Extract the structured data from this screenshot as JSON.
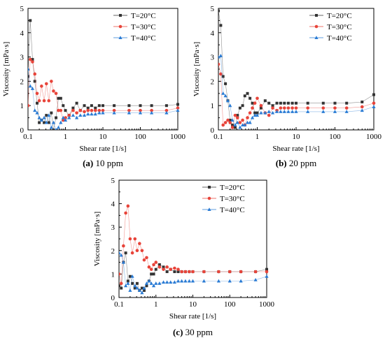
{
  "chart_data": [
    {
      "type": "scatter",
      "caption_letter": "(a)",
      "caption_text": "10 ppm",
      "xlabel": "Shear rate [1/s]",
      "ylabel": "Viscosity [mPa·s]",
      "x_scale": "log",
      "xlim": [
        0.1,
        1000
      ],
      "ylim": [
        0,
        5
      ],
      "x_ticks": [
        "0.1",
        "1",
        "10",
        "100",
        "1000"
      ],
      "y_ticks": [
        "0",
        "1",
        "2",
        "3",
        "4",
        "5"
      ],
      "legend_position": "top-right",
      "series": [
        {
          "name": "T=20°C",
          "color": "#333333",
          "marker": "square",
          "x": [
            0.1,
            0.115,
            0.132,
            0.152,
            0.175,
            0.2,
            0.23,
            0.27,
            0.31,
            0.36,
            0.42,
            0.48,
            0.56,
            0.65,
            0.75,
            0.87,
            1.0,
            1.25,
            1.6,
            2,
            2.5,
            3.2,
            4,
            5,
            6.3,
            8,
            10,
            20,
            50,
            100,
            200,
            500,
            1000
          ],
          "y": [
            2.2,
            4.5,
            2.9,
            2.0,
            1.1,
            0.3,
            0.4,
            0.3,
            0.6,
            0.3,
            0.7,
            0.0,
            0.5,
            1.3,
            1.3,
            1.0,
            0.8,
            0.6,
            0.9,
            1.1,
            0.8,
            1.0,
            0.9,
            1.0,
            0.9,
            1.0,
            1.0,
            1.0,
            1.0,
            1.0,
            1.0,
            1.0,
            1.05
          ]
        },
        {
          "name": "T=30°C",
          "color": "#e8443a",
          "marker": "circle",
          "x": [
            0.1,
            0.115,
            0.132,
            0.152,
            0.175,
            0.2,
            0.23,
            0.27,
            0.31,
            0.36,
            0.42,
            0.48,
            0.56,
            0.65,
            0.75,
            0.87,
            1.0,
            1.25,
            1.6,
            2,
            2.5,
            3.2,
            4,
            5,
            6.3,
            8,
            10,
            20,
            50,
            100,
            200,
            500,
            1000
          ],
          "y": [
            1.0,
            2.9,
            2.8,
            2.3,
            1.5,
            1.2,
            1.8,
            1.2,
            1.9,
            1.2,
            2.0,
            1.6,
            1.5,
            0.8,
            0.8,
            0.4,
            0.5,
            0.6,
            0.8,
            0.7,
            0.8,
            0.75,
            0.8,
            0.8,
            0.8,
            0.8,
            0.8,
            0.8,
            0.8,
            0.8,
            0.8,
            0.8,
            0.9
          ]
        },
        {
          "name": "T=40°C",
          "color": "#2a7bd4",
          "marker": "triangle",
          "x": [
            0.1,
            0.115,
            0.132,
            0.152,
            0.175,
            0.2,
            0.23,
            0.27,
            0.31,
            0.36,
            0.42,
            0.48,
            0.56,
            0.65,
            0.75,
            0.87,
            1.0,
            1.25,
            1.6,
            2,
            2.5,
            3.2,
            4,
            5,
            6.3,
            8,
            10,
            20,
            50,
            100,
            200,
            500,
            1000
          ],
          "y": [
            2.5,
            1.8,
            1.7,
            0.8,
            0.7,
            0.5,
            0.4,
            0.5,
            0.3,
            0.6,
            0.1,
            0.3,
            0.0,
            0.1,
            0.3,
            0.5,
            0.4,
            0.5,
            0.6,
            0.5,
            0.6,
            0.6,
            0.65,
            0.65,
            0.65,
            0.7,
            0.7,
            0.7,
            0.7,
            0.7,
            0.7,
            0.7,
            0.8
          ]
        }
      ]
    },
    {
      "type": "scatter",
      "caption_letter": "(b)",
      "caption_text": "20 ppm",
      "xlabel": "Shear rate [1/s]",
      "ylabel": "Viscosity [mPa·s]",
      "x_scale": "log",
      "xlim": [
        0.1,
        1000
      ],
      "ylim": [
        0,
        5
      ],
      "x_ticks": [
        "0.1",
        "1",
        "10",
        "100",
        "1000"
      ],
      "y_ticks": [
        "0",
        "1",
        "2",
        "3",
        "4",
        "5"
      ],
      "legend_position": "top-right",
      "series": [
        {
          "name": "T=20°C",
          "color": "#333333",
          "marker": "square",
          "x": [
            0.1,
            0.115,
            0.132,
            0.152,
            0.175,
            0.2,
            0.23,
            0.27,
            0.31,
            0.36,
            0.42,
            0.48,
            0.56,
            0.65,
            0.75,
            0.87,
            1.0,
            1.25,
            1.6,
            2,
            2.5,
            3.2,
            4,
            5,
            6.3,
            8,
            10,
            20,
            50,
            100,
            200,
            500,
            1000
          ],
          "y": [
            4.9,
            4.3,
            2.2,
            1.9,
            1.2,
            0.4,
            0.2,
            0.1,
            0.6,
            0.9,
            1.0,
            1.4,
            1.5,
            1.3,
            1.1,
            0.7,
            0.7,
            0.9,
            1.2,
            1.1,
            1.0,
            1.1,
            1.1,
            1.1,
            1.1,
            1.1,
            1.1,
            1.1,
            1.1,
            1.1,
            1.1,
            1.15,
            1.45
          ]
        },
        {
          "name": "T=30°C",
          "color": "#e8443a",
          "marker": "circle",
          "x": [
            0.1,
            0.115,
            0.132,
            0.152,
            0.175,
            0.2,
            0.23,
            0.27,
            0.31,
            0.36,
            0.42,
            0.48,
            0.56,
            0.65,
            0.75,
            0.87,
            1.0,
            1.25,
            1.6,
            2,
            2.5,
            3.2,
            4,
            5,
            6.3,
            8,
            10,
            20,
            50,
            100,
            200,
            500,
            1000
          ],
          "y": [
            2.7,
            2.3,
            0.2,
            0.3,
            0.4,
            0.3,
            0.1,
            0.6,
            0.5,
            0.3,
            0.4,
            0.2,
            0.5,
            0.7,
            0.9,
            1.1,
            1.3,
            1.0,
            0.7,
            0.6,
            0.9,
            0.8,
            0.9,
            0.9,
            0.9,
            0.9,
            0.9,
            0.9,
            0.9,
            0.9,
            0.9,
            0.95,
            1.1
          ]
        },
        {
          "name": "T=40°C",
          "color": "#2a7bd4",
          "marker": "triangle",
          "x": [
            0.1,
            0.115,
            0.132,
            0.152,
            0.175,
            0.2,
            0.23,
            0.27,
            0.31,
            0.36,
            0.42,
            0.48,
            0.56,
            0.65,
            0.75,
            0.87,
            1.0,
            1.25,
            1.6,
            2,
            2.5,
            3.2,
            4,
            5,
            6.3,
            8,
            10,
            20,
            50,
            100,
            200,
            500,
            1000
          ],
          "y": [
            3.0,
            3.05,
            1.5,
            1.4,
            1.2,
            1.0,
            0.4,
            0.2,
            0.3,
            0.1,
            0.2,
            0.2,
            0.3,
            0.3,
            0.5,
            0.6,
            0.6,
            0.7,
            0.7,
            0.75,
            0.7,
            0.75,
            0.75,
            0.75,
            0.75,
            0.75,
            0.75,
            0.75,
            0.75,
            0.75,
            0.75,
            0.8,
            0.95
          ]
        }
      ]
    },
    {
      "type": "scatter",
      "caption_letter": "(c)",
      "caption_text": "30 ppm",
      "xlabel": "Shear rate [1/s]",
      "ylabel": "Viscosity [mPa·s]",
      "x_scale": "log",
      "xlim": [
        0.1,
        1000
      ],
      "ylim": [
        0,
        5
      ],
      "x_ticks": [
        "0.1",
        "1",
        "10",
        "100",
        "1000"
      ],
      "y_ticks": [
        "0",
        "1",
        "2",
        "3",
        "4",
        "5"
      ],
      "legend_position": "top-right",
      "series": [
        {
          "name": "T=20°C",
          "color": "#333333",
          "marker": "square",
          "x": [
            0.1,
            0.115,
            0.132,
            0.152,
            0.175,
            0.2,
            0.23,
            0.27,
            0.31,
            0.36,
            0.42,
            0.48,
            0.56,
            0.65,
            0.75,
            0.87,
            1.0,
            1.25,
            1.6,
            2,
            2.5,
            3.2,
            4,
            5,
            6.3,
            8,
            10,
            20,
            50,
            100,
            200,
            500,
            1000
          ],
          "y": [
            0.5,
            0.4,
            1.5,
            1.9,
            0.7,
            0.9,
            0.6,
            0.4,
            0.6,
            0.3,
            0.4,
            0.3,
            0.5,
            0.7,
            1.0,
            1.0,
            1.2,
            1.4,
            1.3,
            1.1,
            1.2,
            1.1,
            1.1,
            1.1,
            1.1,
            1.1,
            1.1,
            1.1,
            1.1,
            1.1,
            1.1,
            1.1,
            1.2
          ]
        },
        {
          "name": "T=30°C",
          "color": "#e8443a",
          "marker": "circle",
          "x": [
            0.1,
            0.115,
            0.132,
            0.152,
            0.175,
            0.2,
            0.23,
            0.27,
            0.31,
            0.36,
            0.42,
            0.48,
            0.56,
            0.65,
            0.75,
            0.87,
            1.0,
            1.25,
            1.6,
            2,
            2.5,
            3.2,
            4,
            5,
            6.3,
            8,
            10,
            20,
            50,
            100,
            200,
            500,
            1000
          ],
          "y": [
            1.0,
            0.6,
            2.2,
            3.6,
            3.9,
            2.5,
            1.9,
            2.5,
            2.0,
            2.3,
            2.0,
            1.6,
            1.7,
            1.3,
            1.2,
            1.4,
            1.5,
            1.3,
            1.2,
            1.3,
            1.2,
            1.25,
            1.2,
            1.1,
            1.1,
            1.1,
            1.1,
            1.1,
            1.1,
            1.1,
            1.1,
            1.1,
            1.1
          ]
        },
        {
          "name": "T=40°C",
          "color": "#2a7bd4",
          "marker": "triangle",
          "x": [
            0.1,
            0.115,
            0.132,
            0.152,
            0.175,
            0.2,
            0.23,
            0.27,
            0.31,
            0.36,
            0.42,
            0.48,
            0.56,
            0.65,
            0.75,
            0.87,
            1.0,
            1.25,
            1.6,
            2,
            2.5,
            3.2,
            4,
            5,
            6.3,
            8,
            10,
            20,
            50,
            100,
            200,
            500,
            1000
          ],
          "y": [
            1.9,
            1.8,
            1.5,
            0.5,
            0.6,
            0.3,
            0.9,
            0.5,
            0.4,
            0.3,
            0.2,
            0.4,
            0.6,
            0.7,
            0.6,
            0.5,
            0.6,
            0.6,
            0.65,
            0.65,
            0.65,
            0.65,
            0.7,
            0.7,
            0.7,
            0.7,
            0.7,
            0.7,
            0.7,
            0.7,
            0.7,
            0.75,
            0.9
          ]
        }
      ]
    }
  ]
}
